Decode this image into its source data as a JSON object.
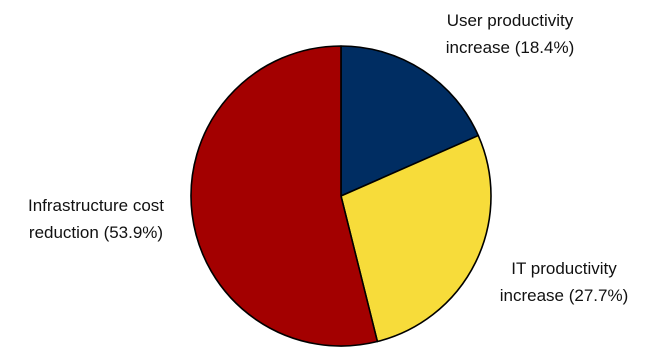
{
  "chart_data": {
    "type": "pie",
    "title": "",
    "start_angle": "12 o'clock",
    "direction": "clockwise",
    "slices": [
      {
        "label_lines": [
          "User productivity",
          "increase (18.4%)"
        ],
        "category": "User productivity increase",
        "value": 18.4,
        "color": "#002d62"
      },
      {
        "label_lines": [
          "IT productivity",
          "increase (27.7%)"
        ],
        "category": "IT productivity increase",
        "value": 27.7,
        "color": "#f7dc3a"
      },
      {
        "label_lines": [
          "Infrastructure cost",
          "reduction (53.9%)"
        ],
        "category": "Infrastructure cost reduction",
        "value": 53.9,
        "color": "#a30000"
      }
    ],
    "legend": "none",
    "slice_outline_color": "#000000"
  }
}
